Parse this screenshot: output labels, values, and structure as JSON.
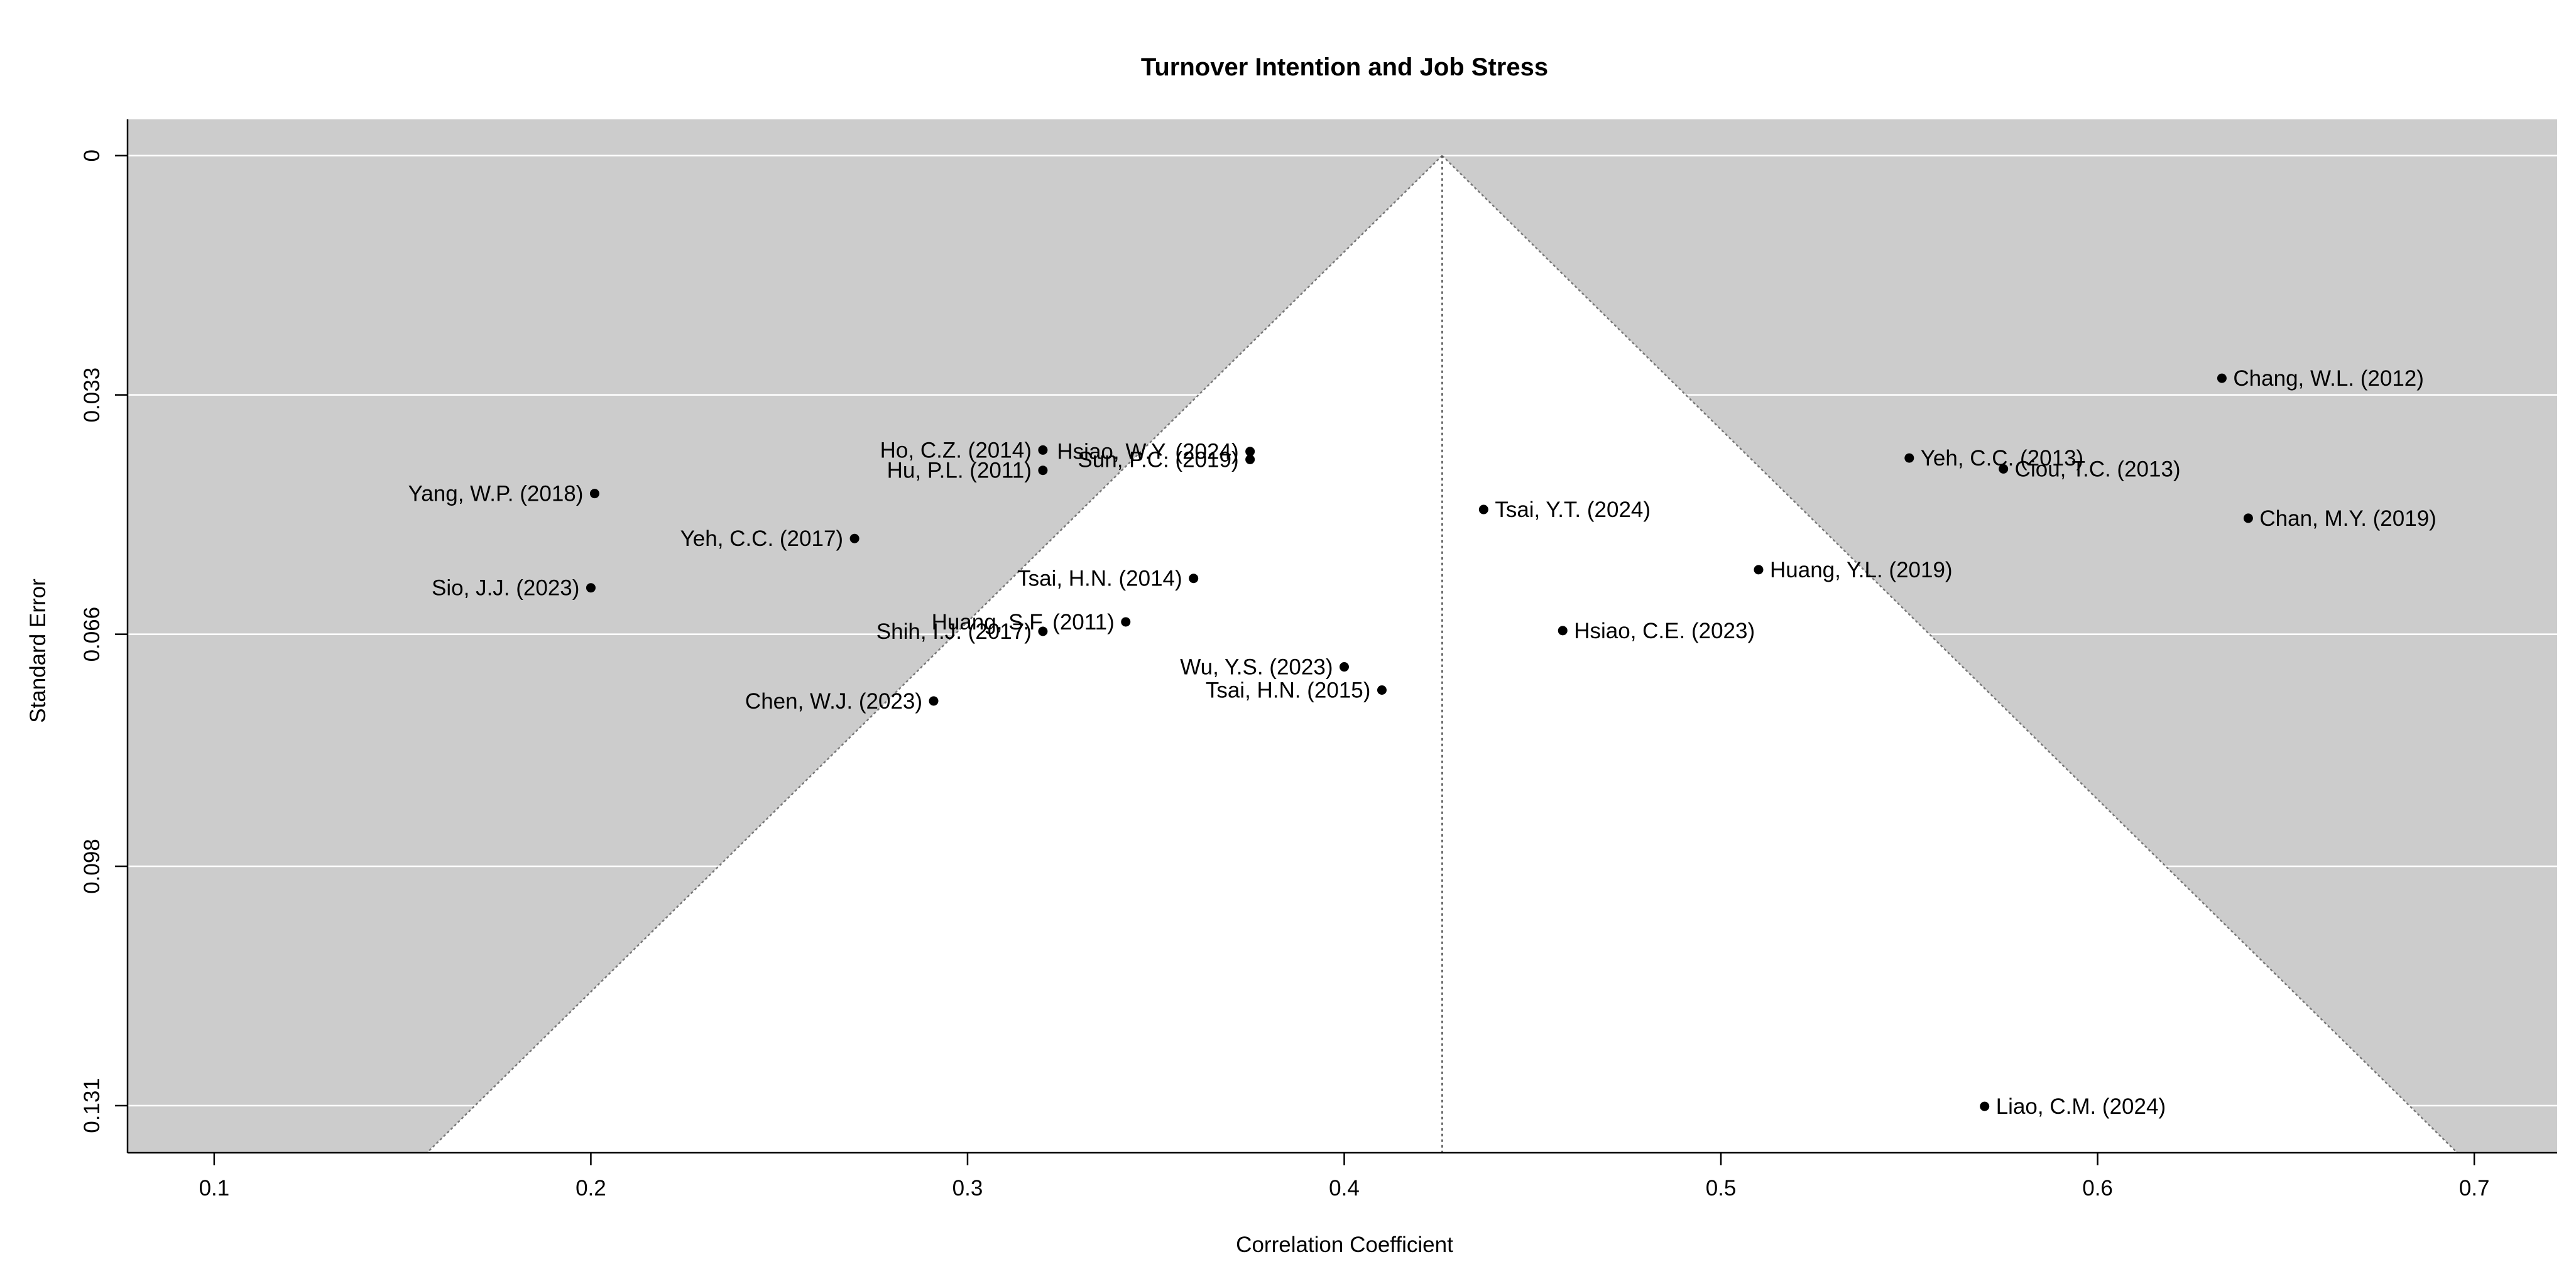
{
  "chart_data": {
    "type": "scatter",
    "subtype": "funnel-plot",
    "title": "Turnover Intention and Job Stress",
    "xlabel": "Correlation Coefficient",
    "ylabel": "Standard Error",
    "xlim": [
      0.077,
      0.722
    ],
    "ylim": [
      0.1375,
      -0.005
    ],
    "y_reversed": true,
    "x_ticks": [
      "0.1",
      "0.2",
      "0.3",
      "0.4",
      "0.5",
      "0.6",
      "0.7"
    ],
    "x_tick_values": [
      0.1,
      0.2,
      0.3,
      0.4,
      0.5,
      0.6,
      0.7
    ],
    "y_ticks": [
      "0",
      "0.033",
      "0.066",
      "0.098",
      "0.131"
    ],
    "y_tick_values": [
      0,
      0.033,
      0.066,
      0.098,
      0.131
    ],
    "summary_effect": 0.426,
    "funnel_slope_per_se": 1.96,
    "grid": "horizontal",
    "background_color": "#cccccc",
    "funnel_color": "#ffffff",
    "point_color": "#000000",
    "points": [
      {
        "label": "Chang, W.L. (2012)",
        "x": 0.633,
        "y": 0.0307,
        "side": "right"
      },
      {
        "label": "Yeh, C.C. (2013)",
        "x": 0.55,
        "y": 0.0417,
        "side": "right"
      },
      {
        "label": "Ciou, T.C. (2013)",
        "x": 0.575,
        "y": 0.0432,
        "side": "right"
      },
      {
        "label": "Chan, M.Y. (2019)",
        "x": 0.64,
        "y": 0.05,
        "side": "right"
      },
      {
        "label": "Tsai, Y.T. (2024)",
        "x": 0.437,
        "y": 0.0488,
        "side": "right"
      },
      {
        "label": "Huang, Y.L. (2019)",
        "x": 0.51,
        "y": 0.0571,
        "side": "right"
      },
      {
        "label": "Hsiao, C.E. (2023)",
        "x": 0.458,
        "y": 0.0655,
        "side": "right"
      },
      {
        "label": "Liao, C.M. (2024)",
        "x": 0.57,
        "y": 0.1311,
        "side": "right"
      },
      {
        "label": "Ho, C.Z. (2014)",
        "x": 0.32,
        "y": 0.0406,
        "side": "left"
      },
      {
        "label": "Hu, P.L. (2011)",
        "x": 0.32,
        "y": 0.0434,
        "side": "left"
      },
      {
        "label": "Hsiao, W.Y. (2024)",
        "x": 0.375,
        "y": 0.0408,
        "side": "left"
      },
      {
        "label": "Sun, P.C. (2019)",
        "x": 0.375,
        "y": 0.0419,
        "side": "left"
      },
      {
        "label": "Yang, W.P. (2018)",
        "x": 0.201,
        "y": 0.0466,
        "side": "left"
      },
      {
        "label": "Yeh, C.C. (2017)",
        "x": 0.27,
        "y": 0.0528,
        "side": "left"
      },
      {
        "label": "Tsai, H.N. (2014)",
        "x": 0.36,
        "y": 0.0583,
        "side": "left"
      },
      {
        "label": "Sio, J.J. (2023)",
        "x": 0.2,
        "y": 0.0596,
        "side": "left"
      },
      {
        "label": "Huang, S.F. (2011)",
        "x": 0.342,
        "y": 0.0643,
        "side": "left"
      },
      {
        "label": "Shih, I.J. (2017)",
        "x": 0.32,
        "y": 0.0656,
        "side": "left"
      },
      {
        "label": "Wu, Y.S. (2023)",
        "x": 0.4,
        "y": 0.0705,
        "side": "left"
      },
      {
        "label": "Tsai, H.N. (2015)",
        "x": 0.41,
        "y": 0.0737,
        "side": "left"
      },
      {
        "label": "Chen, W.J. (2023)",
        "x": 0.291,
        "y": 0.0752,
        "side": "left"
      }
    ]
  }
}
